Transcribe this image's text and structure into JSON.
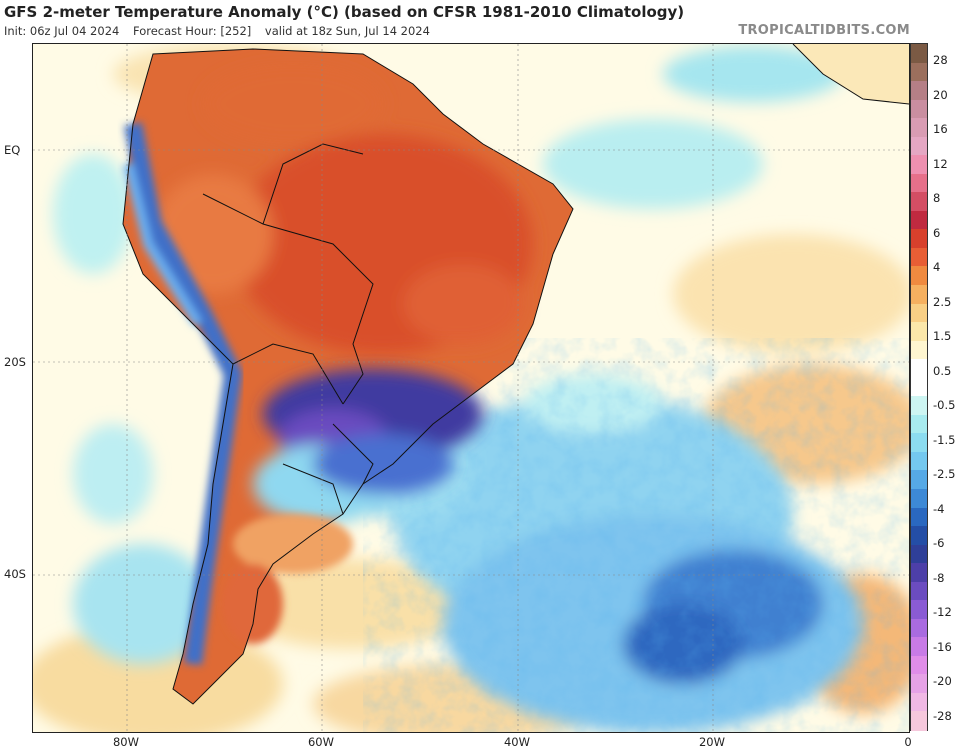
{
  "header": {
    "title": "GFS 2-meter Temperature Anomaly (°C) (based on CFSR 1981-2010 Climatology)",
    "init": "Init: 06z Jul 04 2024",
    "forecast_hour": "Forecast Hour: [252]",
    "valid": "valid at 18z Sun, Jul 14 2024",
    "credit": "TROPICALTIDBITS.COM"
  },
  "axes": {
    "lat_labels": [
      "EQ",
      "20S",
      "40S"
    ],
    "lon_labels": [
      "80W",
      "60W",
      "40W",
      "20W",
      "0"
    ]
  },
  "colorbar": {
    "labels": [
      "28",
      "20",
      "16",
      "12",
      "8",
      "6",
      "4",
      "2.5",
      "1.5",
      "0.5",
      "-0.5",
      "-1.5",
      "-2.5",
      "-4",
      "-6",
      "-8",
      "-12",
      "-16",
      "-20",
      "-28"
    ],
    "colors": [
      "#7b5a44",
      "#9b6f5d",
      "#b57f86",
      "#c98ea0",
      "#d99cb3",
      "#e5a7c3",
      "#ee90b0",
      "#e6708a",
      "#d44e64",
      "#c02a40",
      "#d8402c",
      "#e85e35",
      "#f08a40",
      "#f6b060",
      "#f9cf85",
      "#fbe7aa",
      "#fff6d0",
      "#ffffff",
      "#ffffff",
      "#cdf5f2",
      "#a8ebef",
      "#8cdcf0",
      "#74c8ef",
      "#56a9e6",
      "#3d89d6",
      "#2a68c0",
      "#244ea6",
      "#2f3f98",
      "#4d3fa8",
      "#6b4cc0",
      "#8a5bd4",
      "#a96be0",
      "#c87be6",
      "#e08de8",
      "#e6a2e6",
      "#f0b8e4",
      "#f6c8dc"
    ]
  },
  "map": {
    "land_color": "#d9602f",
    "cold_core_color": "#5a3fb0",
    "ocean_cold_color": "#7cc6ee",
    "ocean_warm_color": "#f8d89c"
  }
}
